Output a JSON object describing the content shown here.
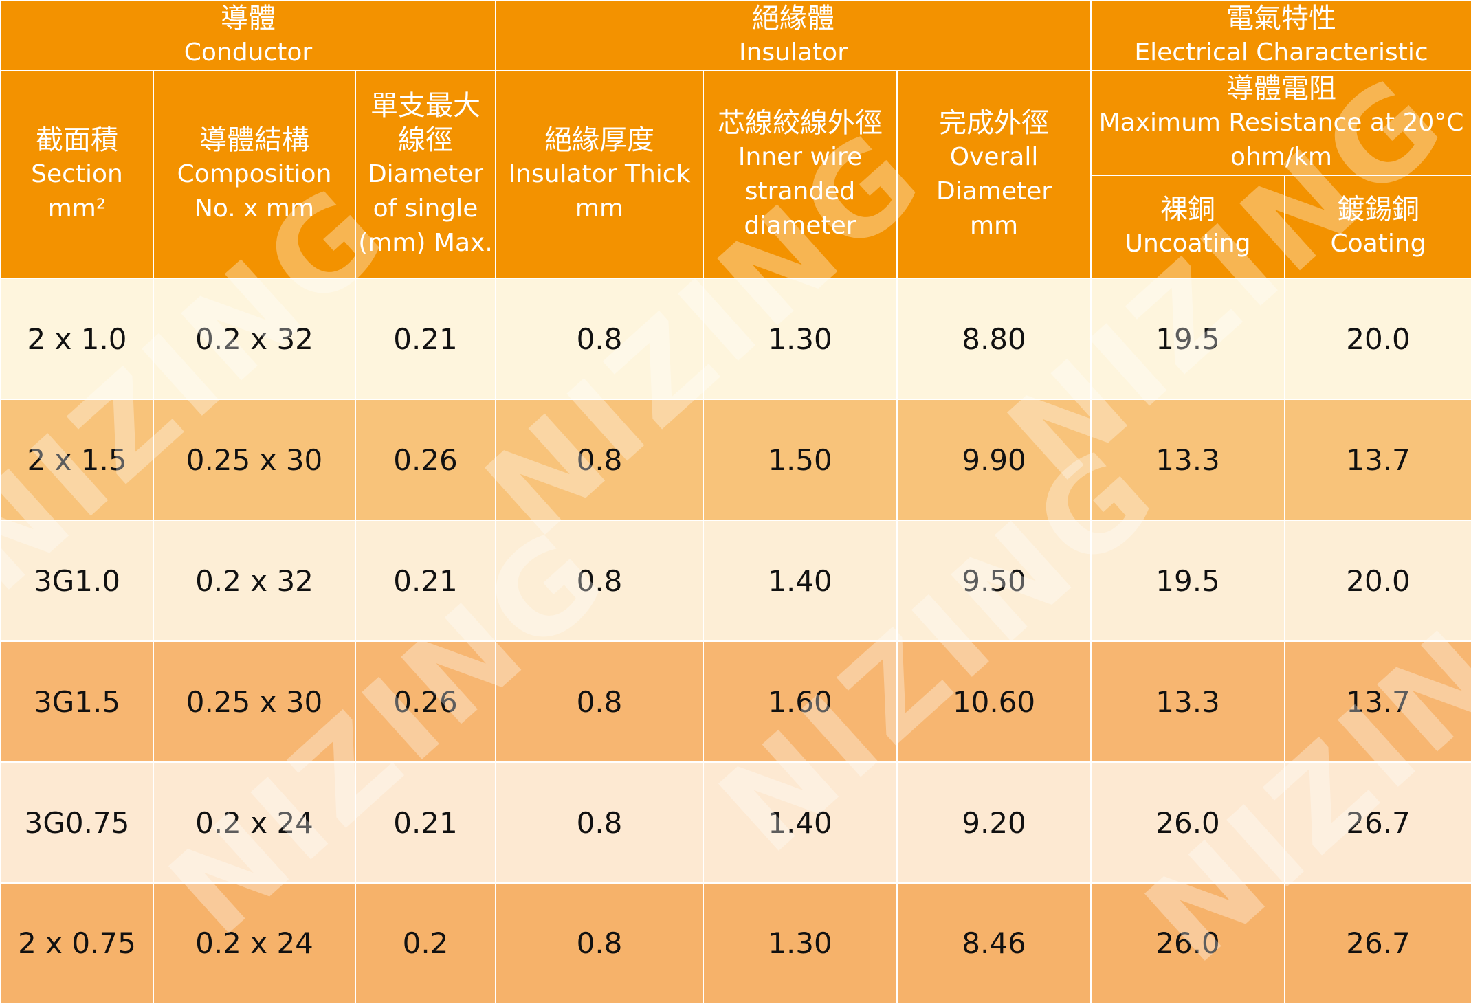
{
  "watermark": "NIZING",
  "header": {
    "conductor": {
      "zh": "導體",
      "en": "Conductor"
    },
    "insulator": {
      "zh": "絕緣體",
      "en": "Insulator"
    },
    "electrical": {
      "zh": "電氣特性",
      "en": "Electrical Characteristic"
    },
    "section": {
      "zh": "截面積",
      "en": "Section mm²"
    },
    "composition": {
      "zh": "導體結構",
      "en1": "Composition",
      "en2": "No. x mm"
    },
    "diameter_single": {
      "zh1": "單支最大",
      "zh2": "線徑",
      "en1": "Diameter",
      "en2": "of single",
      "en3": "(mm) Max."
    },
    "insulator_thick": {
      "zh": "絕緣厚度",
      "en1": "Insulator Thick",
      "en2": "mm"
    },
    "inner_wire": {
      "zh": "芯線絞線外徑",
      "en1": "Inner wire",
      "en2": "stranded",
      "en3": "diameter"
    },
    "overall": {
      "zh": "完成外徑",
      "en1": "Overall",
      "en2": "Diameter",
      "en3": "mm"
    },
    "resistance": {
      "zh": "導體電阻",
      "en1": "Maximum Resistance at 20°C",
      "en2": "ohm/km"
    },
    "uncoating": {
      "zh": "裸銅",
      "en": "Uncoating"
    },
    "coating": {
      "zh": "鍍錫銅",
      "en": "Coating"
    }
  },
  "rows": [
    [
      "2 x 1.0",
      "0.2 x 32",
      "0.21",
      "0.8",
      "1.30",
      "8.80",
      "19.5",
      "20.0"
    ],
    [
      "2 x 1.5",
      "0.25 x 30",
      "0.26",
      "0.8",
      "1.50",
      "9.90",
      "13.3",
      "13.7"
    ],
    [
      "3G1.0",
      "0.2 x 32",
      "0.21",
      "0.8",
      "1.40",
      "9.50",
      "19.5",
      "20.0"
    ],
    [
      "3G1.5",
      "0.25 x 30",
      "0.26",
      "0.8",
      "1.60",
      "10.60",
      "13.3",
      "13.7"
    ],
    [
      "3G0.75",
      "0.2 x 24",
      "0.21",
      "0.8",
      "1.40",
      "9.20",
      "26.0",
      "26.7"
    ],
    [
      "2 x 0.75",
      "0.2 x 24",
      "0.2",
      "0.8",
      "1.30",
      "8.46",
      "26.0",
      "26.7"
    ]
  ]
}
